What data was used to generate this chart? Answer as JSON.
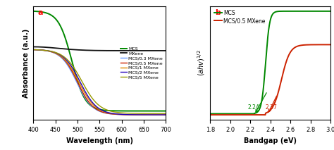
{
  "panel_a": {
    "xlabel": "Wavelength (nm)",
    "ylabel": "Absorbance (a.u.)",
    "xmin": 400,
    "xmax": 700,
    "label": "a",
    "xticks": [
      400,
      450,
      500,
      550,
      600,
      650,
      700
    ],
    "series": [
      {
        "name": "MCS",
        "color": "#008800"
      },
      {
        "name": "MCS/0.3 MXene",
        "color": "#6699ff"
      },
      {
        "name": "MCS/0.5 MXene",
        "color": "#cc2200"
      },
      {
        "name": "MCS/1 MXene",
        "color": "#dd8800"
      },
      {
        "name": "MCS/2 MXene",
        "color": "#2200bb"
      },
      {
        "name": "MCS/5 MXene",
        "color": "#999900"
      },
      {
        "name": "MXene",
        "color": "#111111"
      }
    ]
  },
  "panel_b": {
    "xlabel": "Bandgap (eV)",
    "ylabel": "(ahv)^{1/2}",
    "xmin": 1.8,
    "xmax": 3.0,
    "label": "b",
    "annotation1": "2.24",
    "annotation2": "2.37",
    "eg1": 2.24,
    "eg2": 2.37,
    "xticks": [
      1.8,
      2.0,
      2.2,
      2.4,
      2.6,
      2.8,
      3.0
    ],
    "series": [
      {
        "name": "MCS",
        "color": "#008800"
      },
      {
        "name": "MCS/0.5 MXene",
        "color": "#cc2200"
      }
    ]
  }
}
